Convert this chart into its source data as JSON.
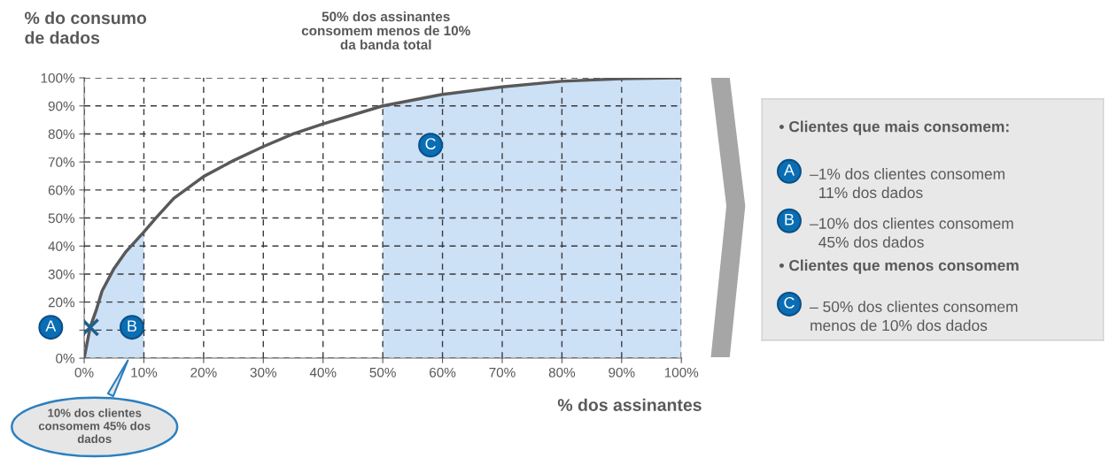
{
  "chart_data": [
    {
      "type": "line",
      "title": "50% dos assinantes\nconsomem menos de 10%\nda banda total",
      "ylabel": "% do consumo\nde dados",
      "xlabel": "% dos assinantes",
      "xlim": [
        0,
        100
      ],
      "ylim": [
        0,
        100
      ],
      "xticks": [
        {
          "value": 0,
          "label": "0%"
        },
        {
          "value": 10,
          "label": "10%"
        },
        {
          "value": 20,
          "label": "20%"
        },
        {
          "value": 30,
          "label": "30%"
        },
        {
          "value": 40,
          "label": "40%"
        },
        {
          "value": 50,
          "label": "50%"
        },
        {
          "value": 60,
          "label": "60%"
        },
        {
          "value": 70,
          "label": "70%"
        },
        {
          "value": 80,
          "label": "80%"
        },
        {
          "value": 90,
          "label": "90%"
        },
        {
          "value": 100,
          "label": "100%"
        }
      ],
      "yticks": [
        {
          "value": 0,
          "label": "0%"
        },
        {
          "value": 10,
          "label": null
        },
        {
          "value": 20,
          "label": "20%"
        },
        {
          "value": 30,
          "label": "30%"
        },
        {
          "value": 40,
          "label": "40%"
        },
        {
          "value": 50,
          "label": "50%"
        },
        {
          "value": 60,
          "label": "60%"
        },
        {
          "value": 70,
          "label": "70%"
        },
        {
          "value": 80,
          "label": "80%"
        },
        {
          "value": 90,
          "label": "90%"
        },
        {
          "value": 100,
          "label": "100%"
        }
      ],
      "grid": true,
      "legend": false,
      "line_style": "solid",
      "series": [
        {
          "type": "area",
          "color": "#cce0f6",
          "x": [
            0,
            1,
            2,
            3,
            5,
            7,
            10
          ],
          "values": [
            0,
            11,
            17,
            24,
            32,
            38,
            45
          ]
        },
        {
          "type": "area",
          "color": "#cce0f6",
          "x": [
            50,
            60,
            70,
            80,
            90,
            100
          ],
          "values": [
            90,
            94.1,
            96.8,
            98.8,
            99.7,
            100
          ]
        },
        {
          "type": "line",
          "color": "#595959",
          "x": [
            0,
            1,
            2,
            3,
            5,
            7,
            10,
            12,
            15,
            20,
            25,
            30,
            35,
            40,
            50,
            60,
            70,
            80,
            90,
            100
          ],
          "values": [
            0,
            11,
            17,
            24,
            32,
            38,
            45,
            50,
            57,
            64.8,
            70.5,
            75.5,
            80,
            83.6,
            90,
            94.1,
            96.8,
            98.8,
            99.7,
            100
          ]
        },
        {
          "type": "scatter",
          "color": "#1f5f8b",
          "marker": "cross",
          "x": [
            1
          ],
          "values": [
            11
          ]
        }
      ],
      "annotations": [
        {
          "text": "A",
          "x": 1,
          "y": 11
        },
        {
          "text": "B",
          "x": 8,
          "y": 11
        },
        {
          "text": "C",
          "x": 58,
          "y": 76
        },
        "10% dos clientes\nconsomem 45% dos\ndados"
      ]
    },
    {
      "type": "other",
      "annotations": [
        "• Clientes que mais consomem:",
        "A",
        "–1% dos clientes consomem\n  11% dos dados",
        "B",
        "–10% dos clientes consomem\n  45% dos dados",
        "• Clientes que menos consomem",
        "C",
        "– 50% dos clientes consomem\nmenos de 10% dos dados"
      ]
    }
  ]
}
